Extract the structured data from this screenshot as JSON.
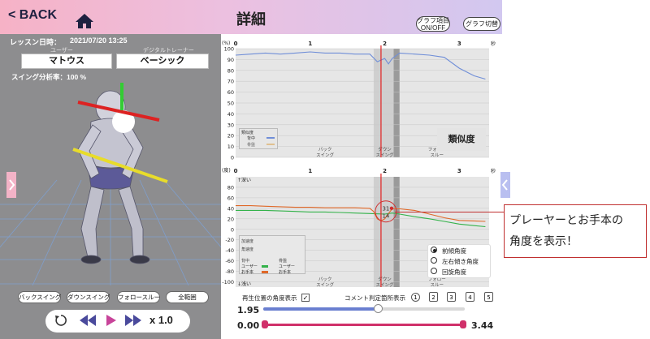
{
  "header": {
    "back_label": "< BACK",
    "title": "詳細",
    "graph_toggle_label": "グラフ項目\nON/OFF",
    "graph_switch_label": "グラフ切替"
  },
  "lesson": {
    "date_label": "レッスン日時：",
    "date_value": "2021/07/20  13:25",
    "user_caption": "ユーザー",
    "trainer_caption": "デジタルトレーナー",
    "user_name": "マトウス",
    "trainer_name": "ベーシック",
    "analysis_rate": "スイング分析率：100 %"
  },
  "phases": [
    "バックスイング",
    "ダウンスイング",
    "フォロースルー",
    "全範囲"
  ],
  "playback": {
    "speed": "x 1.0"
  },
  "chart_data": [
    {
      "type": "line",
      "ylabel": "(%)",
      "xunit": "秒",
      "x_ticks": [
        "0",
        "1",
        "2",
        "3"
      ],
      "y_ticks": [
        100,
        90,
        80,
        70,
        60,
        50,
        40,
        30,
        20,
        10,
        0
      ],
      "ylim": [
        0,
        100
      ],
      "xlim": [
        0,
        3.4
      ],
      "phase_labels": [
        "バック\nスイング",
        "ダウン\nスイング",
        "フォロー\nスルー"
      ],
      "legend": {
        "title": "類似度",
        "items": [
          "背中",
          "骨盤"
        ]
      },
      "badge": "類似度",
      "series": [
        {
          "name": "背中",
          "color": "#6f8ed8",
          "x": [
            0,
            0.2,
            0.4,
            0.6,
            0.8,
            1.0,
            1.2,
            1.4,
            1.6,
            1.8,
            1.9,
            2.0,
            2.05,
            2.1,
            2.2,
            2.4,
            2.6,
            2.8,
            3.0,
            3.2,
            3.35
          ],
          "y": [
            94,
            95,
            96,
            95,
            96,
            97,
            96,
            96,
            95,
            95,
            88,
            91,
            86,
            91,
            96,
            95,
            94,
            92,
            82,
            75,
            72
          ]
        }
      ]
    },
    {
      "type": "line",
      "ylabel": "(度)",
      "xunit": "秒",
      "x_ticks": [
        "0",
        "1",
        "2",
        "3"
      ],
      "y_ticks": [
        80,
        60,
        40,
        20,
        0,
        -20,
        -40,
        -60,
        -80,
        -100
      ],
      "ylim": [
        -110,
        100
      ],
      "xlim": [
        0,
        3.4
      ],
      "top_label": "↑深い",
      "bottom_label": "↓浅い",
      "phase_labels": [
        "バック\nスイング",
        "ダウン\nスイング",
        "フォロー\nスルー"
      ],
      "marker_values": [
        "31",
        "14"
      ],
      "legend": {
        "row1": "加速度",
        "row2": "角速度",
        "col1": "背中",
        "col2": "骨盤",
        "user": "ユーザー",
        "model": "お手本"
      },
      "radio_options": [
        "前傾角度",
        "左右傾き角度",
        "回旋角度"
      ],
      "selected_option": "前傾角度",
      "series": [
        {
          "name": "ユーザー",
          "color": "#33b24a",
          "x": [
            0,
            0.2,
            0.4,
            0.6,
            0.8,
            1.0,
            1.2,
            1.4,
            1.6,
            1.8,
            2.0,
            2.1,
            2.2,
            2.4,
            2.6,
            2.8,
            3.0,
            3.2,
            3.35
          ],
          "y": [
            36,
            36,
            36,
            35,
            34,
            33,
            33,
            32,
            31,
            30,
            29,
            31,
            29,
            24,
            20,
            15,
            10,
            7,
            5
          ]
        },
        {
          "name": "お手本",
          "color": "#e06828",
          "x": [
            0,
            0.2,
            0.4,
            0.6,
            0.8,
            1.0,
            1.2,
            1.4,
            1.6,
            1.8,
            1.85,
            1.9,
            1.95,
            2.0,
            2.05,
            2.1,
            2.2,
            2.4,
            2.6,
            2.8,
            3.0,
            3.2,
            3.35
          ],
          "y": [
            45,
            45,
            44,
            43,
            42,
            42,
            41,
            41,
            41,
            40,
            34,
            20,
            16,
            20,
            30,
            39,
            39,
            36,
            29,
            22,
            17,
            16,
            15
          ]
        }
      ]
    }
  ],
  "controls": {
    "angle_display_label": "再生位置の角度表示",
    "comment_label": "コメント判定箇所表示",
    "comment_numbers": [
      "1",
      "2",
      "3",
      "4",
      "5"
    ],
    "playback_position": "1.95",
    "range_start": "0.00",
    "range_end": "3.44"
  },
  "annotation": {
    "line1": "プレーヤーとお手本の",
    "line2": "角度を表示！"
  },
  "colors": {
    "header_left": "#f6b2c6",
    "header_right": "#d2c8f0",
    "accent_slider": "#6a7fd0",
    "range_slider": "#d0306a",
    "playhead": "#e02020"
  }
}
